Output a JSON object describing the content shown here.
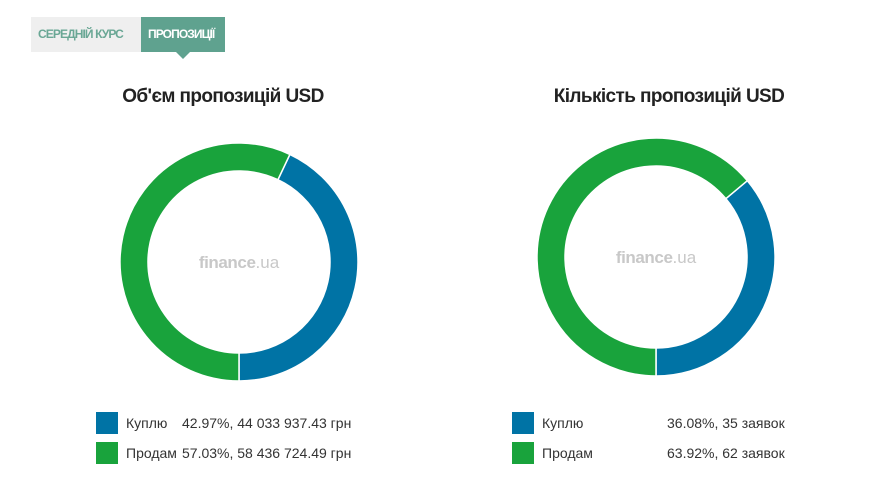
{
  "tabs": [
    {
      "label": "СЕРЕДНІЙ КУРС",
      "active": false
    },
    {
      "label": "ПРОПОЗИЦІЇ",
      "active": true
    }
  ],
  "colors": {
    "buy": "#0073a5",
    "sell": "#19a33c",
    "tab_active": "#5fa28f",
    "tab_inactive_bg": "#efefef"
  },
  "watermark": {
    "main": "finance",
    "suffix": ".ua"
  },
  "chart_data": [
    {
      "type": "pie",
      "title": "Об'єм пропозицій USD",
      "categories": [
        "Куплю",
        "Продам"
      ],
      "values": [
        42.97,
        57.03
      ],
      "labels": [
        "42.97%, 44 033 937.43 грн",
        "57.03%, 58 436 724.49 грн"
      ]
    },
    {
      "type": "pie",
      "title": "Кількість пропозицій USD",
      "categories": [
        "Куплю",
        "Продам"
      ],
      "values": [
        36.08,
        63.92
      ],
      "labels": [
        "36.08%, 35 заявок",
        "63.92%, 62 заявок"
      ]
    }
  ]
}
